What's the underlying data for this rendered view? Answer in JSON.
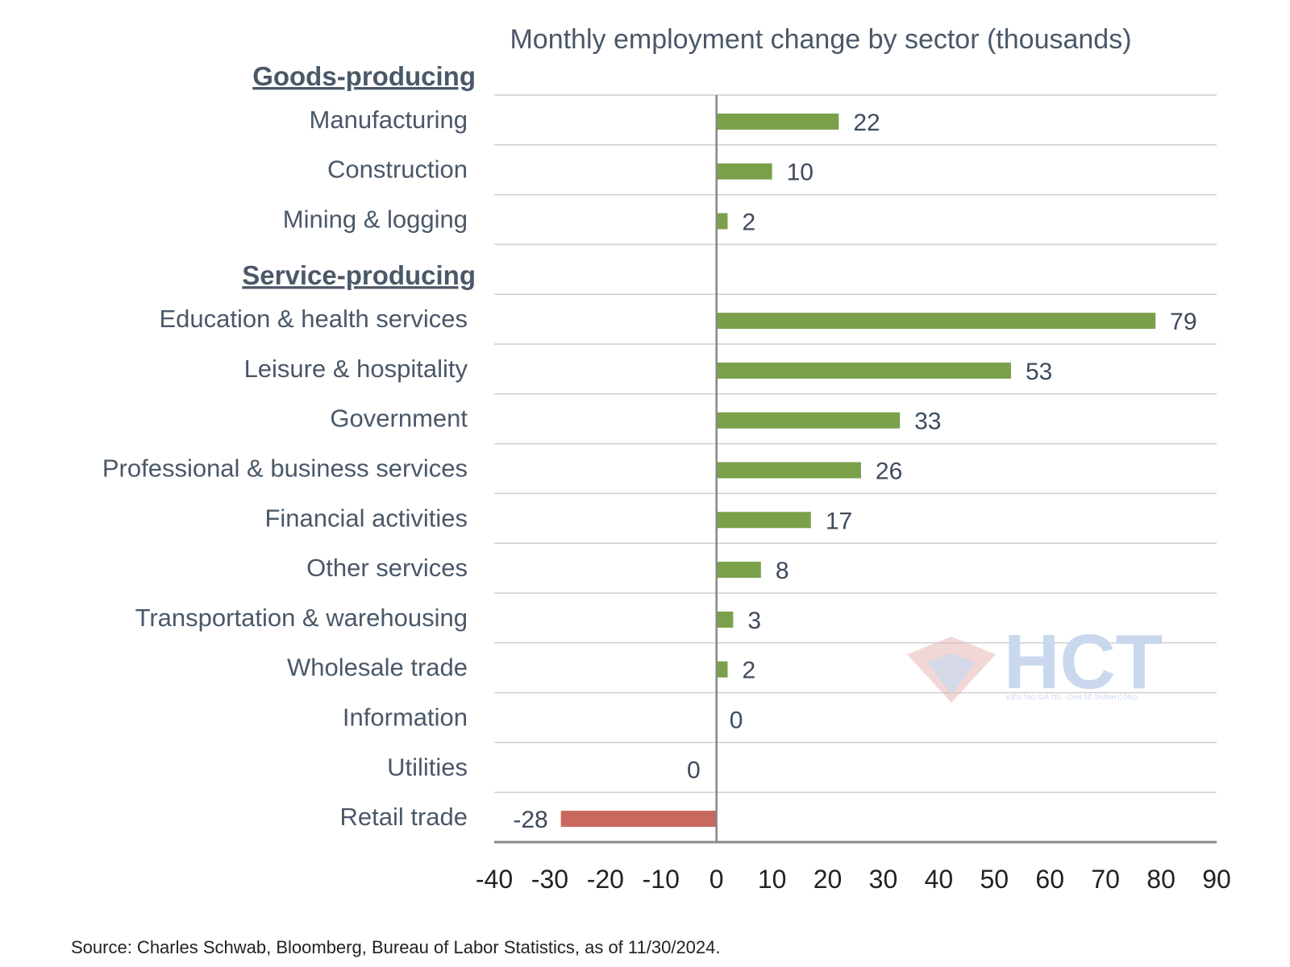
{
  "chart_data": {
    "type": "bar",
    "orientation": "horizontal",
    "title": "Monthly employment change by sector (thousands)",
    "groups": [
      {
        "name": "Goods-producing",
        "categories": [
          "Manufacturing",
          "Construction",
          "Mining & logging"
        ],
        "values": [
          22,
          10,
          2
        ],
        "labels": [
          "22",
          "10",
          "2"
        ]
      },
      {
        "name": "Service-producing",
        "categories": [
          "Education & health services",
          "Leisure & hospitality",
          "Government",
          "Professional & business services",
          "Financial activities",
          "Other services",
          "Transportation & warehousing",
          "Wholesale trade",
          "Information",
          "Utilities",
          "Retail trade"
        ],
        "values": [
          79,
          53,
          33,
          26,
          17,
          8,
          3,
          2,
          0,
          0,
          -28
        ],
        "labels": [
          "79",
          "53",
          "33",
          "26",
          "17",
          "8",
          "3",
          "2",
          "0",
          "0",
          "-28"
        ]
      }
    ],
    "xlim": [
      -40,
      90
    ],
    "xticks": [
      "-40",
      "-30",
      "-20",
      "-10",
      "0",
      "10",
      "20",
      "30",
      "40",
      "50",
      "60",
      "70",
      "80",
      "90"
    ],
    "grid": true,
    "colors": {
      "positive": "#7aa04a",
      "negative": "#c9685c",
      "axis": "#888888",
      "grid": "#cfcfcf"
    }
  },
  "source": "Source: Charles Schwab, Bloomberg, Bureau of Labor Statistics, as of 11/30/2024.",
  "watermark": {
    "text": "HCT",
    "subtitle": "KIẾN TẠO GIÁ TRỊ - CHIA SẺ THÀNH CÔNG"
  }
}
